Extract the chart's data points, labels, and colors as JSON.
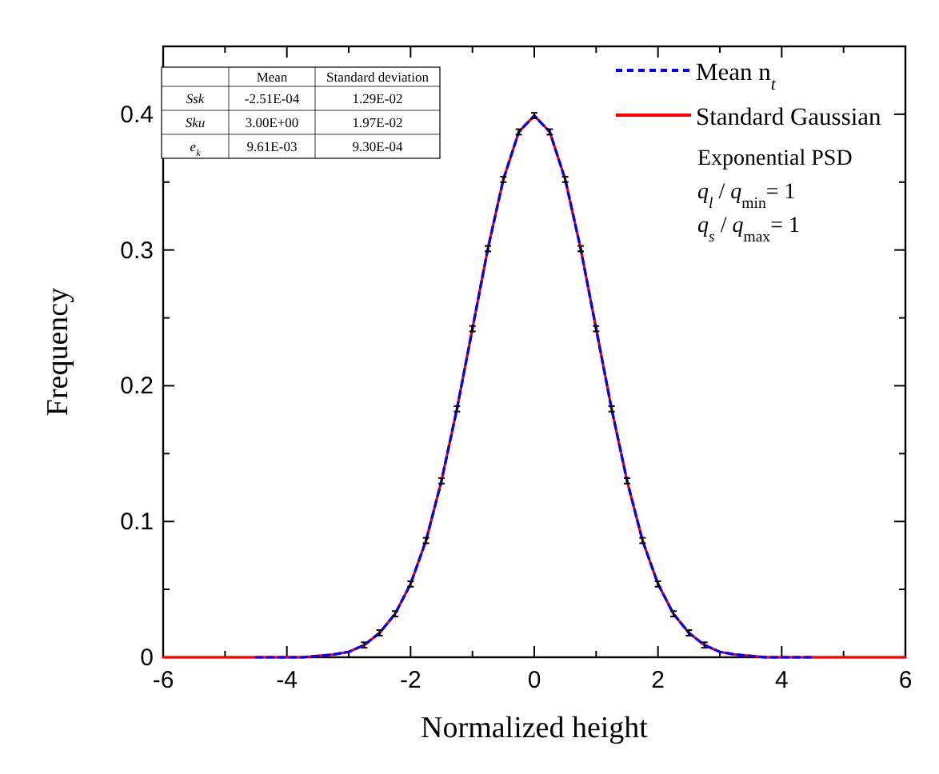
{
  "chart_data": {
    "type": "line",
    "xlabel": "Normalized height",
    "ylabel": "Frequency",
    "xlim": [
      -6,
      6
    ],
    "ylim": [
      0,
      0.45
    ],
    "xticks": [
      -6,
      {
        "value": -5,
        "label": null
      },
      -4,
      {
        "value": -3,
        "label": null
      },
      -2,
      {
        "value": -1,
        "label": null
      },
      0,
      {
        "value": 1,
        "label": null
      },
      2,
      {
        "value": 3,
        "label": null
      },
      4,
      {
        "value": 5,
        "label": null
      },
      6
    ],
    "yticks": [
      0,
      {
        "value": 0.05,
        "label": null
      },
      0.1,
      {
        "value": 0.15,
        "label": null
      },
      0.2,
      {
        "value": 0.25,
        "label": null
      },
      0.3,
      {
        "value": 0.35,
        "label": null
      },
      0.4
    ],
    "grid": false,
    "legend": "top right",
    "series": [
      {
        "name": "Mean n$_{t}$",
        "color": "#0000ff",
        "line_style": "dashed",
        "x": [
          -4.5,
          -4.25,
          -4,
          -3.75,
          -3.5,
          -3.25,
          -3,
          -2.75,
          -2.5,
          -2.25,
          -2,
          -1.75,
          -1.5,
          -1.25,
          -1,
          -0.75,
          -0.5,
          -0.25,
          0,
          0.25,
          0.5,
          0.75,
          1,
          1.25,
          1.5,
          1.75,
          2,
          2.25,
          2.5,
          2.75,
          3,
          3.25,
          3.5,
          3.75,
          4,
          4.25,
          4.5
        ],
        "values": [
          0,
          0,
          0,
          0,
          0.001,
          0.002,
          0.004,
          0.009,
          0.018,
          0.032,
          0.054,
          0.086,
          0.13,
          0.183,
          0.242,
          0.301,
          0.352,
          0.387,
          0.399,
          0.387,
          0.352,
          0.301,
          0.242,
          0.183,
          0.13,
          0.086,
          0.054,
          0.032,
          0.018,
          0.009,
          0.004,
          0.002,
          0.001,
          0,
          0,
          0,
          0
        ],
        "errors": [
          null,
          null,
          null,
          null,
          null,
          null,
          null,
          0.002,
          0.002,
          0.002,
          0.002,
          0.002,
          0.002,
          0.002,
          0.002,
          0.002,
          0.002,
          0.002,
          0.002,
          0.002,
          0.002,
          0.002,
          0.002,
          0.002,
          0.002,
          0.002,
          0.002,
          0.002,
          0.002,
          0.002,
          null,
          null,
          null,
          null,
          null,
          null,
          null
        ]
      },
      {
        "name": "Standard Gaussian",
        "color": "#ff0000",
        "line_style": "solid",
        "x": [
          -6,
          -5,
          -4.5,
          -4,
          -3.75,
          -3.5,
          -3.25,
          -3,
          -2.75,
          -2.5,
          -2.25,
          -2,
          -1.75,
          -1.5,
          -1.25,
          -1,
          -0.75,
          -0.5,
          -0.25,
          0,
          0.25,
          0.5,
          0.75,
          1,
          1.25,
          1.5,
          1.75,
          2,
          2.25,
          2.5,
          2.75,
          3,
          3.25,
          3.5,
          3.75,
          4,
          4.5,
          5,
          6
        ],
        "values": [
          0,
          0,
          0,
          0,
          0,
          0.001,
          0.002,
          0.004,
          0.009,
          0.018,
          0.032,
          0.054,
          0.086,
          0.13,
          0.183,
          0.242,
          0.301,
          0.352,
          0.387,
          0.399,
          0.387,
          0.352,
          0.301,
          0.242,
          0.183,
          0.13,
          0.086,
          0.054,
          0.032,
          0.018,
          0.009,
          0.004,
          0.002,
          0.001,
          0,
          0,
          0,
          0,
          0
        ]
      }
    ],
    "annotations": [
      "Mean",
      "Standard deviation",
      "Ssk",
      "-2.51E-04",
      "1.29E-02",
      "Sku",
      "3.00E+00",
      "1.97E-02",
      "e$_{k}$",
      "9.61E-03",
      "9.30E-04",
      "Exponential PSD",
      "q$_{l}$ / q$_{min}$= 1",
      "q$_{s}$ / q$_{max}$= 1"
    ]
  }
}
